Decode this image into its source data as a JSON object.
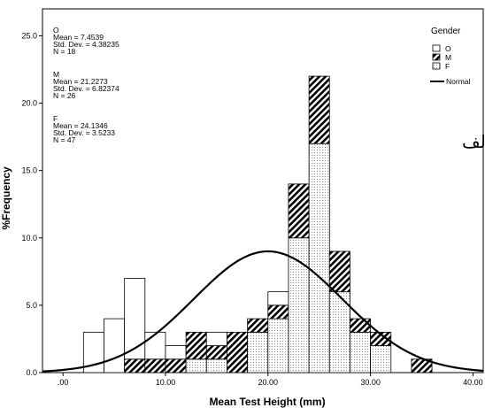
{
  "chart_data": {
    "type": "bar",
    "subtype": "stacked-histogram",
    "xlabel": "Mean Test Height (mm)",
    "ylabel": "%Frequency",
    "xlim": [
      -2,
      41
    ],
    "ylim": [
      0,
      27
    ],
    "x_ticks": [
      0,
      10,
      20,
      30,
      40
    ],
    "x_tick_labels": [
      ".00",
      "10.00",
      "20.00",
      "30.00",
      "40.00"
    ],
    "y_ticks": [
      0,
      5,
      10,
      15,
      20,
      25
    ],
    "y_tick_labels": [
      "0.0",
      "5.0",
      "10.0",
      "15.0",
      "20.0",
      "25.0"
    ],
    "bin_width": 2,
    "bin_starts": [
      2,
      4,
      6,
      8,
      10,
      12,
      14,
      16,
      18,
      20,
      22,
      24,
      26,
      28,
      30,
      34
    ],
    "series": [
      {
        "name": "F",
        "values": [
          0,
          0,
          0,
          0,
          0,
          1,
          1,
          0,
          3,
          4,
          10,
          17,
          6,
          3,
          2,
          0
        ]
      },
      {
        "name": "M",
        "values": [
          0,
          0,
          1,
          1,
          1,
          2,
          1,
          3,
          1,
          1,
          4,
          5,
          3,
          1,
          1,
          1
        ]
      },
      {
        "name": "O",
        "values": [
          3,
          4,
          6,
          2,
          1,
          0,
          1,
          0,
          0,
          1,
          0,
          0,
          0,
          0,
          0,
          0
        ]
      }
    ],
    "normal_curve": {
      "label": "Normal",
      "mean": 20.0,
      "sd": 7.25,
      "peak": 9.0
    },
    "stats": [
      {
        "group": "O",
        "mean": "Mean = 7.4539",
        "sd": "Std. Dev. = 4.38235",
        "n": "N = 18"
      },
      {
        "group": "M",
        "mean": "Mean = 21.2273",
        "sd": "Std. Dev. = 6.82374",
        "n": "N = 26"
      },
      {
        "group": "F",
        "mean": "Mean = 24.1346",
        "sd": "Std. Dev. = 3.5233",
        "n": "N = 47"
      }
    ],
    "legend": {
      "title": "Gender",
      "position": "top-right",
      "items": [
        {
          "label": "O",
          "fill": "blank"
        },
        {
          "label": "M",
          "fill": "diagonal-hatch"
        },
        {
          "label": "F",
          "fill": "dots"
        }
      ],
      "line_label": "Normal"
    },
    "annotation": "الف",
    "grid": false
  }
}
